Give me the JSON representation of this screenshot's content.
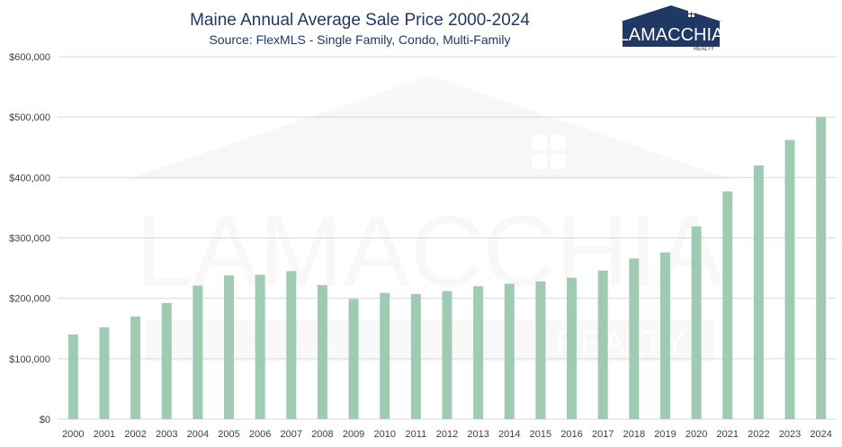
{
  "chart_data": {
    "type": "bar",
    "title": "Maine Annual Average Sale Price 2000-2024",
    "subtitle": "Source: FlexMLS - Single Family, Condo, Multi-Family",
    "categories": [
      "2000",
      "2001",
      "2002",
      "2003",
      "2004",
      "2005",
      "2006",
      "2007",
      "2008",
      "2009",
      "2010",
      "2011",
      "2012",
      "2013",
      "2014",
      "2015",
      "2016",
      "2017",
      "2018",
      "2019",
      "2020",
      "2021",
      "2022",
      "2023",
      "2024"
    ],
    "values": [
      140000,
      152000,
      170000,
      192000,
      221000,
      238000,
      239000,
      245000,
      222000,
      199000,
      209000,
      207000,
      212000,
      220000,
      224000,
      228000,
      234000,
      246000,
      266000,
      276000,
      319000,
      377000,
      420000,
      462000,
      500000
    ],
    "ylim": [
      0,
      600000
    ],
    "yticks": [
      0,
      100000,
      200000,
      300000,
      400000,
      500000,
      600000
    ],
    "ytick_labels": [
      "$0",
      "$100,000",
      "$200,000",
      "$300,000",
      "$400,000",
      "$500,000",
      "$600,000"
    ],
    "grid": true,
    "bar_color": "#9fcbb3",
    "grid_color": "#d9d9d9",
    "title_color": "#1f3864"
  },
  "logo": {
    "name": "LAMACCHIA",
    "tagline": "REALTY",
    "color": "#1f3864"
  },
  "watermark": {
    "name": "LAMACCHIA",
    "tagline": "REALTY",
    "icon": "house-icon"
  }
}
